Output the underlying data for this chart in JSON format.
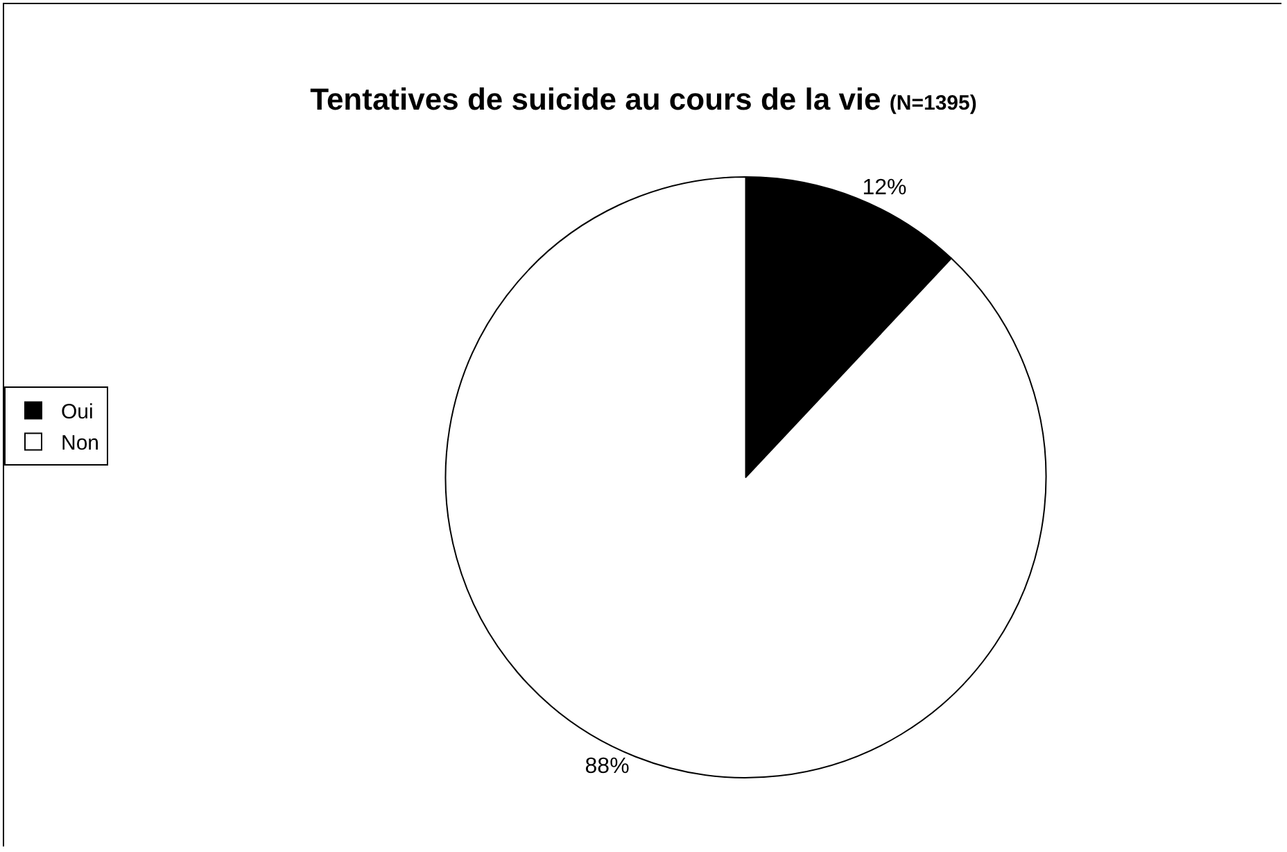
{
  "chart_data": {
    "type": "pie",
    "title": "Tentatives de suicide au cours de la vie",
    "subtitle": "(N=1395)",
    "categories": [
      "Oui",
      "Non"
    ],
    "values": [
      12,
      88
    ],
    "colors": [
      "#000000",
      "#ffffff"
    ],
    "value_labels": [
      "12%",
      "88%"
    ],
    "legend": "left"
  }
}
